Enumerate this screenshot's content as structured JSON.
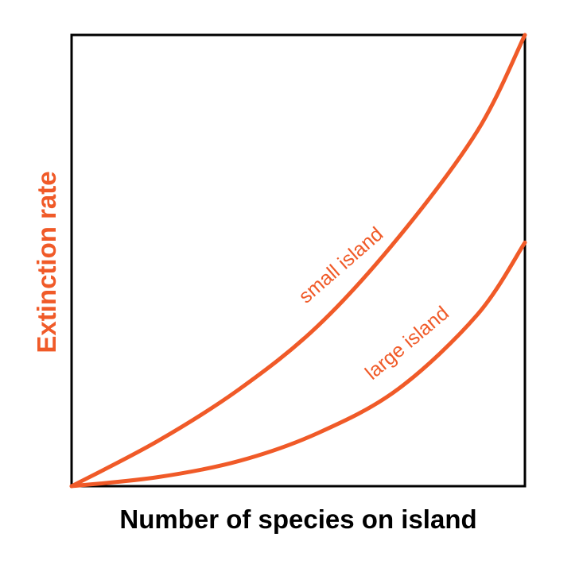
{
  "chart_data": {
    "type": "line",
    "title": "",
    "xlabel": "Number of species on island",
    "ylabel": "Extinction rate",
    "xlim": [
      0,
      1
    ],
    "ylim": [
      0,
      1
    ],
    "grid": false,
    "ticks": false,
    "series": [
      {
        "name": "small island",
        "x": [
          0,
          0.19,
          0.37,
          0.544,
          0.72,
          0.895,
          1
        ],
        "y": [
          0,
          0.1,
          0.215,
          0.356,
          0.55,
          0.787,
          1
        ]
      },
      {
        "name": "large island",
        "x": [
          0,
          0.19,
          0.37,
          0.544,
          0.72,
          0.895,
          1
        ],
        "y": [
          0,
          0.02,
          0.056,
          0.118,
          0.215,
          0.38,
          0.54
        ]
      }
    ],
    "colors": {
      "curve": "#f05a28",
      "ylabel": "#f05a28",
      "xlabel": "#000000",
      "axes": "#000000"
    }
  }
}
